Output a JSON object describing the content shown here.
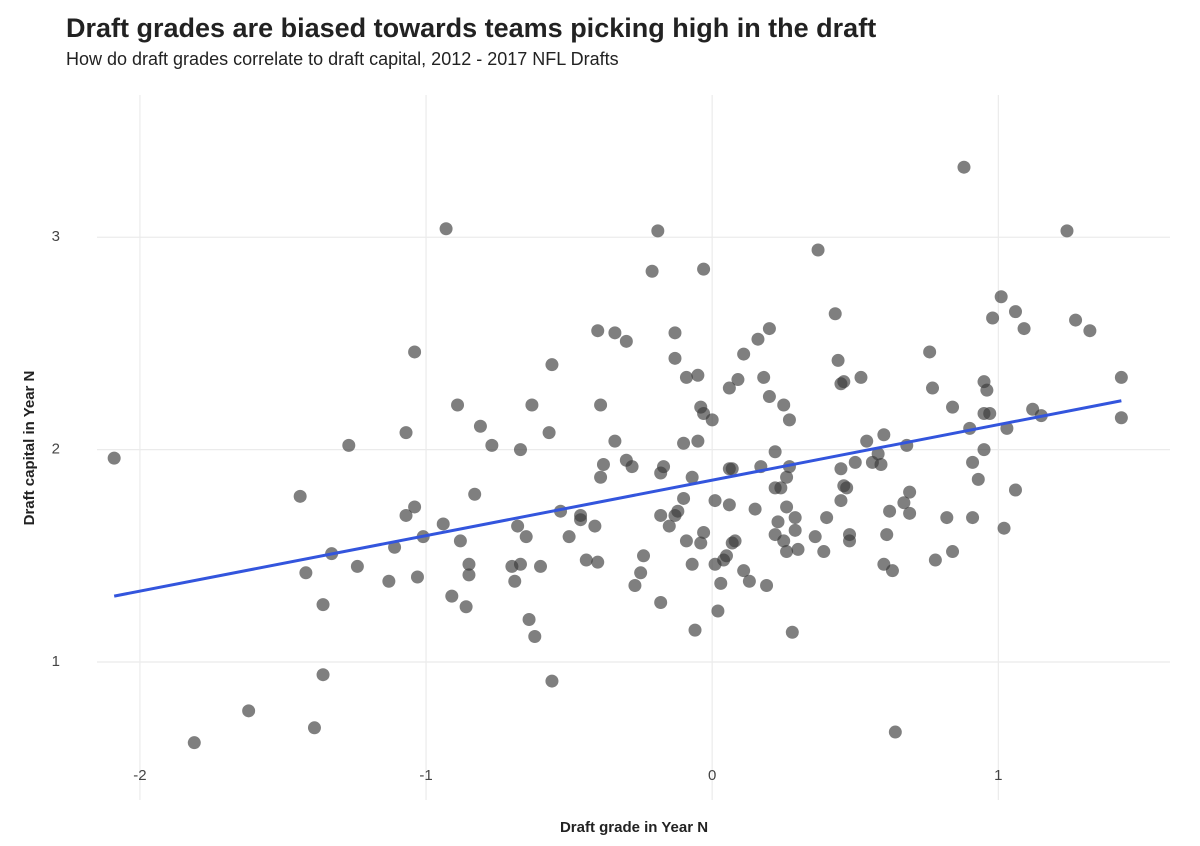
{
  "chart_data": {
    "type": "scatter",
    "title": "Draft grades are biased towards teams picking high in the draft",
    "subtitle": "How do draft grades correlate to draft capital, 2012 - 2017 NFL Drafts",
    "x_label": "Draft grade in Year N",
    "y_label": "Draft capital in Year N",
    "xlim": [
      -2.15,
      1.6
    ],
    "ylim": [
      0.35,
      3.67
    ],
    "xticks": [
      -2,
      -1,
      0,
      1
    ],
    "yticks": [
      1,
      2,
      3
    ],
    "grid": true,
    "color": "#3a3a3a",
    "x": [
      -2.09,
      -1.81,
      -1.62,
      -1.44,
      -1.42,
      -1.39,
      -1.36,
      -1.36,
      -1.33,
      -1.27,
      -1.24,
      -1.13,
      -1.11,
      -1.07,
      -1.07,
      -1.04,
      -1.04,
      -1.03,
      -1.01,
      -0.94,
      -0.93,
      -0.91,
      -0.89,
      -0.88,
      -0.86,
      -0.85,
      -0.85,
      -0.83,
      -0.81,
      -0.77,
      -0.7,
      -0.69,
      -0.68,
      -0.67,
      -0.67,
      -0.65,
      -0.64,
      -0.63,
      -0.62,
      -0.6,
      -0.57,
      -0.56,
      -0.56,
      -0.53,
      -0.5,
      -0.46,
      -0.46,
      -0.44,
      -0.41,
      -0.4,
      -0.4,
      -0.39,
      -0.39,
      -0.38,
      -0.34,
      -0.34,
      -0.3,
      -0.3,
      -0.28,
      -0.27,
      -0.25,
      -0.24,
      -0.21,
      -0.19,
      -0.18,
      -0.18,
      -0.18,
      -0.17,
      -0.15,
      -0.13,
      -0.13,
      -0.13,
      -0.12,
      -0.1,
      -0.1,
      -0.09,
      -0.09,
      -0.07,
      -0.07,
      -0.06,
      -0.05,
      -0.05,
      -0.04,
      -0.04,
      -0.03,
      -0.03,
      -0.03,
      0.0,
      0.01,
      0.01,
      0.02,
      0.03,
      0.04,
      0.05,
      0.06,
      0.06,
      0.06,
      0.07,
      0.07,
      0.08,
      0.09,
      0.11,
      0.11,
      0.13,
      0.15,
      0.16,
      0.17,
      0.18,
      0.19,
      0.2,
      0.2,
      0.22,
      0.22,
      0.22,
      0.23,
      0.24,
      0.25,
      0.25,
      0.26,
      0.26,
      0.26,
      0.27,
      0.27,
      0.28,
      0.29,
      0.29,
      0.3,
      0.36,
      0.37,
      0.39,
      0.4,
      0.43,
      0.44,
      0.45,
      0.45,
      0.45,
      0.46,
      0.46,
      0.47,
      0.48,
      0.48,
      0.5,
      0.52,
      0.54,
      0.56,
      0.58,
      0.59,
      0.6,
      0.6,
      0.61,
      0.62,
      0.63,
      0.64,
      0.67,
      0.68,
      0.69,
      0.69,
      0.76,
      0.77,
      0.78,
      0.82,
      0.84,
      0.84,
      0.88,
      0.9,
      0.91,
      0.91,
      0.93,
      0.95,
      0.95,
      0.95,
      0.96,
      0.97,
      0.98,
      1.01,
      1.02,
      1.03,
      1.06,
      1.06,
      1.09,
      1.12,
      1.15,
      1.24,
      1.27,
      1.32,
      1.43,
      1.43
    ],
    "values": [
      1.96,
      0.62,
      0.77,
      1.78,
      1.42,
      0.69,
      1.27,
      0.94,
      1.51,
      2.02,
      1.45,
      1.38,
      1.54,
      1.69,
      2.08,
      2.46,
      1.73,
      1.4,
      1.59,
      1.65,
      3.04,
      1.31,
      2.21,
      1.57,
      1.26,
      1.46,
      1.41,
      1.79,
      2.11,
      2.02,
      1.45,
      1.38,
      1.64,
      1.46,
      2.0,
      1.59,
      1.2,
      2.21,
      1.12,
      1.45,
      2.08,
      2.4,
      0.91,
      1.71,
      1.59,
      1.67,
      1.69,
      1.48,
      1.64,
      1.47,
      2.56,
      1.87,
      2.21,
      1.93,
      2.04,
      2.55,
      2.51,
      1.95,
      1.92,
      1.36,
      1.42,
      1.5,
      2.84,
      3.03,
      1.28,
      1.69,
      1.89,
      1.92,
      1.64,
      1.69,
      2.55,
      2.43,
      1.71,
      1.77,
      2.03,
      2.34,
      1.57,
      1.87,
      1.46,
      1.15,
      2.04,
      2.35,
      2.2,
      1.56,
      1.61,
      2.85,
      2.17,
      2.14,
      1.46,
      1.76,
      1.24,
      1.37,
      1.48,
      1.5,
      2.29,
      1.91,
      1.74,
      1.56,
      1.91,
      1.57,
      2.33,
      2.45,
      1.43,
      1.38,
      1.72,
      2.52,
      1.92,
      2.34,
      1.36,
      2.25,
      2.57,
      1.99,
      1.82,
      1.6,
      1.66,
      1.82,
      1.57,
      2.21,
      1.52,
      1.87,
      1.73,
      1.92,
      2.14,
      1.14,
      1.68,
      1.62,
      1.53,
      1.59,
      2.94,
      1.52,
      1.68,
      2.64,
      2.42,
      2.31,
      1.76,
      1.91,
      2.32,
      1.83,
      1.82,
      1.57,
      1.6,
      1.94,
      2.34,
      2.04,
      1.94,
      1.98,
      1.93,
      2.07,
      1.46,
      1.6,
      1.71,
      1.43,
      0.67,
      1.75,
      2.02,
      1.8,
      1.7,
      2.46,
      2.29,
      1.48,
      1.68,
      2.2,
      1.52,
      3.33,
      2.1,
      1.94,
      1.68,
      1.86,
      2.17,
      2.0,
      2.32,
      2.28,
      2.17,
      2.62,
      2.72,
      1.63,
      2.1,
      2.65,
      1.81,
      2.57,
      2.19,
      2.16,
      3.03,
      2.61,
      2.56,
      2.15,
      2.34
    ],
    "trend": {
      "x": [
        -2.09,
        1.43
      ],
      "y": [
        1.31,
        2.23
      ],
      "color": "#3355dd"
    }
  }
}
